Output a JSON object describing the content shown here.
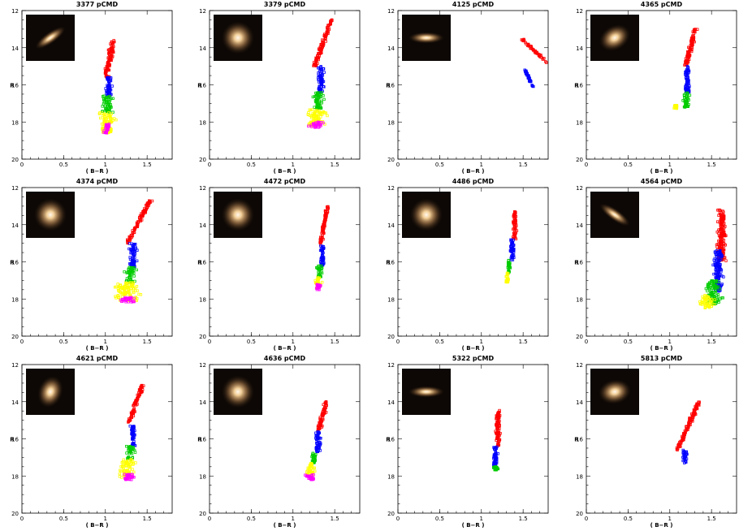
{
  "figure": {
    "x_axis_label": "( B−R )",
    "y_axis_label": "R",
    "x_ticks": [
      0,
      0.5,
      1,
      1.5
    ],
    "x_tick_labels": [
      "0",
      "0.5",
      "1",
      "1.5"
    ],
    "y_ticks": [
      12,
      14,
      16,
      18,
      20
    ],
    "y_tick_labels": [
      "12",
      "14",
      "16",
      "18",
      "20"
    ],
    "bin_colors": [
      "#ff0000",
      "#0000ff",
      "#00cc00",
      "#ffff00",
      "#ff00ff"
    ],
    "inset_background": "#0d0805",
    "galaxy_core_color": "#fff8ee",
    "galaxy_halo_color": "#c8925a"
  },
  "chart_data": [
    {
      "type": "scatter",
      "title": "3377 pCMD",
      "xlabel": "( B−R )",
      "ylabel": "R",
      "xlim": [
        0,
        1.8
      ],
      "ylim": [
        20,
        12
      ],
      "inset": {
        "shape": "disk",
        "angle": -35
      },
      "bins": [
        {
          "color": "#ff0000",
          "center_x": 1.05,
          "r_range": [
            13.6,
            15.6
          ],
          "width": 0.05,
          "slope": 0.02
        },
        {
          "color": "#0000ff",
          "center_x": 1.04,
          "r_range": [
            15.6,
            16.6
          ],
          "width": 0.06,
          "slope": 0.0
        },
        {
          "color": "#00cc00",
          "center_x": 1.03,
          "r_range": [
            16.6,
            17.5
          ],
          "width": 0.1,
          "slope": 0.0
        },
        {
          "color": "#ffff00",
          "center_x": 1.02,
          "r_range": [
            17.5,
            18.6
          ],
          "width": 0.14,
          "slope": 0.0
        },
        {
          "color": "#ff00ff",
          "center_x": 1.02,
          "r_range": [
            18.1,
            18.6
          ],
          "width": 0.05,
          "slope": 0.0
        }
      ]
    },
    {
      "type": "scatter",
      "title": "3379 pCMD",
      "xlabel": "( B−R )",
      "ylabel": "R",
      "xlim": [
        0,
        1.8
      ],
      "ylim": [
        20,
        12
      ],
      "inset": {
        "shape": "round",
        "angle": 0
      },
      "bins": [
        {
          "color": "#ff0000",
          "center_x": 1.36,
          "r_range": [
            12.5,
            15.0
          ],
          "width": 0.04,
          "slope": 0.04
        },
        {
          "color": "#0000ff",
          "center_x": 1.33,
          "r_range": [
            15.0,
            16.4
          ],
          "width": 0.06,
          "slope": 0.0
        },
        {
          "color": "#00cc00",
          "center_x": 1.3,
          "r_range": [
            16.4,
            17.3
          ],
          "width": 0.1,
          "slope": 0.0
        },
        {
          "color": "#ffff00",
          "center_x": 1.28,
          "r_range": [
            17.3,
            18.2
          ],
          "width": 0.18,
          "slope": 0.0
        },
        {
          "color": "#ff00ff",
          "center_x": 1.28,
          "r_range": [
            18.0,
            18.3
          ],
          "width": 0.14,
          "slope": 0.0
        }
      ]
    },
    {
      "type": "scatter",
      "title": "4125 pCMD",
      "xlabel": "( B−R )",
      "ylabel": "R",
      "xlim": [
        0,
        1.8
      ],
      "ylim": [
        20,
        12
      ],
      "inset": {
        "shape": "disk",
        "angle": 0
      },
      "bins": [
        {
          "color": "#ff0000",
          "center_x": 1.68,
          "r_range": [
            13.5,
            15.2
          ],
          "width": 0.03,
          "slope": -0.12
        },
        {
          "color": "#0000ff",
          "center_x": 1.57,
          "r_range": [
            15.2,
            16.1
          ],
          "width": 0.02,
          "slope": -0.05
        }
      ]
    },
    {
      "type": "scatter",
      "title": "4365 pCMD",
      "xlabel": "( B−R )",
      "ylabel": "R",
      "xlim": [
        0,
        1.8
      ],
      "ylim": [
        20,
        12
      ],
      "inset": {
        "shape": "oval",
        "angle": -30
      },
      "bins": [
        {
          "color": "#ff0000",
          "center_x": 1.25,
          "r_range": [
            13.0,
            15.0
          ],
          "width": 0.04,
          "slope": 0.03
        },
        {
          "color": "#0000ff",
          "center_x": 1.21,
          "r_range": [
            15.0,
            16.4
          ],
          "width": 0.05,
          "slope": 0.0
        },
        {
          "color": "#00cc00",
          "center_x": 1.2,
          "r_range": [
            16.4,
            17.2
          ],
          "width": 0.07,
          "slope": 0.0
        },
        {
          "color": "#ffff00",
          "center_x": 1.07,
          "r_range": [
            17.1,
            17.3
          ],
          "width": 0.03,
          "slope": 0.0
        }
      ]
    },
    {
      "type": "scatter",
      "title": "4374 pCMD",
      "xlabel": "( B−R )",
      "ylabel": "R",
      "xlim": [
        0,
        1.8
      ],
      "ylim": [
        20,
        12
      ],
      "inset": {
        "shape": "round",
        "angle": 0
      },
      "bins": [
        {
          "color": "#ff0000",
          "center_x": 1.4,
          "r_range": [
            12.7,
            15.0
          ],
          "width": 0.04,
          "slope": 0.06
        },
        {
          "color": "#0000ff",
          "center_x": 1.33,
          "r_range": [
            15.0,
            16.3
          ],
          "width": 0.06,
          "slope": 0.0
        },
        {
          "color": "#00cc00",
          "center_x": 1.3,
          "r_range": [
            16.3,
            17.1
          ],
          "width": 0.1,
          "slope": 0.0
        },
        {
          "color": "#ffff00",
          "center_x": 1.27,
          "r_range": [
            17.1,
            18.1
          ],
          "width": 0.22,
          "slope": 0.0
        },
        {
          "color": "#ff00ff",
          "center_x": 1.27,
          "r_range": [
            17.9,
            18.2
          ],
          "width": 0.16,
          "slope": 0.0
        }
      ]
    },
    {
      "type": "scatter",
      "title": "4472 pCMD",
      "xlabel": "( B−R )",
      "ylabel": "R",
      "xlim": [
        0,
        1.8
      ],
      "ylim": [
        20,
        12
      ],
      "inset": {
        "shape": "round",
        "angle": 0
      },
      "bins": [
        {
          "color": "#ff0000",
          "center_x": 1.37,
          "r_range": [
            13.0,
            15.1
          ],
          "width": 0.03,
          "slope": 0.02
        },
        {
          "color": "#0000ff",
          "center_x": 1.35,
          "r_range": [
            15.1,
            16.2
          ],
          "width": 0.04,
          "slope": 0.0
        },
        {
          "color": "#00cc00",
          "center_x": 1.32,
          "r_range": [
            16.2,
            16.8
          ],
          "width": 0.05,
          "slope": 0.0
        },
        {
          "color": "#ffff00",
          "center_x": 1.3,
          "r_range": [
            16.8,
            17.4
          ],
          "width": 0.06,
          "slope": 0.0
        },
        {
          "color": "#ff00ff",
          "center_x": 1.3,
          "r_range": [
            17.2,
            17.5
          ],
          "width": 0.05,
          "slope": 0.0
        }
      ]
    },
    {
      "type": "scatter",
      "title": "4486 pCMD",
      "xlabel": "( B−R )",
      "ylabel": "R",
      "xlim": [
        0,
        1.8
      ],
      "ylim": [
        20,
        12
      ],
      "inset": {
        "shape": "round",
        "angle": 0
      },
      "bins": [
        {
          "color": "#ff0000",
          "center_x": 1.4,
          "r_range": [
            13.3,
            14.8
          ],
          "width": 0.03,
          "slope": 0.0
        },
        {
          "color": "#0000ff",
          "center_x": 1.37,
          "r_range": [
            14.8,
            15.9
          ],
          "width": 0.04,
          "slope": 0.0
        },
        {
          "color": "#00cc00",
          "center_x": 1.33,
          "r_range": [
            15.9,
            16.6
          ],
          "width": 0.03,
          "slope": 0.0
        },
        {
          "color": "#ffff00",
          "center_x": 1.31,
          "r_range": [
            16.6,
            17.1
          ],
          "width": 0.03,
          "slope": 0.0
        }
      ]
    },
    {
      "type": "scatter",
      "title": "4564 pCMD",
      "xlabel": "( B−R )",
      "ylabel": "R",
      "xlim": [
        0,
        1.8
      ],
      "ylim": [
        20,
        12
      ],
      "inset": {
        "shape": "disk",
        "angle": 35
      },
      "bins": [
        {
          "color": "#ff0000",
          "center_x": 1.62,
          "r_range": [
            13.2,
            16.0
          ],
          "width": 0.08,
          "slope": 0.0
        },
        {
          "color": "#0000ff",
          "center_x": 1.58,
          "r_range": [
            15.4,
            17.6
          ],
          "width": 0.08,
          "slope": 0.0
        },
        {
          "color": "#00cc00",
          "center_x": 1.52,
          "r_range": [
            17.0,
            18.3
          ],
          "width": 0.14,
          "slope": 0.0
        },
        {
          "color": "#ffff00",
          "center_x": 1.45,
          "r_range": [
            17.8,
            18.5
          ],
          "width": 0.14,
          "slope": 0.0
        }
      ]
    },
    {
      "type": "scatter",
      "title": "4621 pCMD",
      "xlabel": "( B−R )",
      "ylabel": "R",
      "xlim": [
        0,
        1.8
      ],
      "ylim": [
        20,
        12
      ],
      "inset": {
        "shape": "oval",
        "angle": -70
      },
      "bins": [
        {
          "color": "#ff0000",
          "center_x": 1.36,
          "r_range": [
            13.1,
            15.2
          ],
          "width": 0.04,
          "slope": 0.04
        },
        {
          "color": "#0000ff",
          "center_x": 1.33,
          "r_range": [
            15.2,
            16.4
          ],
          "width": 0.05,
          "slope": 0.0
        },
        {
          "color": "#00cc00",
          "center_x": 1.3,
          "r_range": [
            16.4,
            17.1
          ],
          "width": 0.08,
          "slope": 0.0
        },
        {
          "color": "#ffff00",
          "center_x": 1.26,
          "r_range": [
            17.1,
            18.1
          ],
          "width": 0.14,
          "slope": 0.0
        },
        {
          "color": "#ff00ff",
          "center_x": 1.28,
          "r_range": [
            17.9,
            18.2
          ],
          "width": 0.1,
          "slope": 0.0
        }
      ]
    },
    {
      "type": "scatter",
      "title": "4636 pCMD",
      "xlabel": "( B−R )",
      "ylabel": "R",
      "xlim": [
        0,
        1.8
      ],
      "ylim": [
        20,
        12
      ],
      "inset": {
        "shape": "round",
        "angle": 0
      },
      "bins": [
        {
          "color": "#ff0000",
          "center_x": 1.35,
          "r_range": [
            14.0,
            15.6
          ],
          "width": 0.04,
          "slope": 0.03
        },
        {
          "color": "#0000ff",
          "center_x": 1.3,
          "r_range": [
            15.6,
            16.7
          ],
          "width": 0.05,
          "slope": 0.0
        },
        {
          "color": "#00cc00",
          "center_x": 1.25,
          "r_range": [
            16.7,
            17.3
          ],
          "width": 0.05,
          "slope": 0.0
        },
        {
          "color": "#ffff00",
          "center_x": 1.22,
          "r_range": [
            17.3,
            18.0
          ],
          "width": 0.08,
          "slope": 0.0
        },
        {
          "color": "#ff00ff",
          "center_x": 1.2,
          "r_range": [
            17.9,
            18.2
          ],
          "width": 0.08,
          "slope": 0.0
        }
      ]
    },
    {
      "type": "scatter",
      "title": "5322 pCMD",
      "xlabel": "( B−R )",
      "ylabel": "R",
      "xlim": [
        0,
        1.8
      ],
      "ylim": [
        20,
        12
      ],
      "inset": {
        "shape": "disk",
        "angle": 0
      },
      "bins": [
        {
          "color": "#ff0000",
          "center_x": 1.2,
          "r_range": [
            14.4,
            16.4
          ],
          "width": 0.04,
          "slope": 0.0
        },
        {
          "color": "#0000ff",
          "center_x": 1.17,
          "r_range": [
            16.4,
            17.6
          ],
          "width": 0.05,
          "slope": 0.0
        },
        {
          "color": "#00cc00",
          "center_x": 1.17,
          "r_range": [
            17.5,
            17.7
          ],
          "width": 0.05,
          "slope": 0.0
        }
      ]
    },
    {
      "type": "scatter",
      "title": "5813 pCMD",
      "xlabel": "( B−R )",
      "ylabel": "R",
      "xlim": [
        0,
        1.8
      ],
      "ylim": [
        20,
        12
      ],
      "inset": {
        "shape": "oval",
        "angle": -10
      },
      "bins": [
        {
          "color": "#ff0000",
          "center_x": 1.22,
          "r_range": [
            14.0,
            16.6
          ],
          "width": 0.04,
          "slope": 0.05
        },
        {
          "color": "#0000ff",
          "center_x": 1.18,
          "r_range": [
            16.6,
            17.3
          ],
          "width": 0.04,
          "slope": 0.0
        }
      ]
    }
  ]
}
